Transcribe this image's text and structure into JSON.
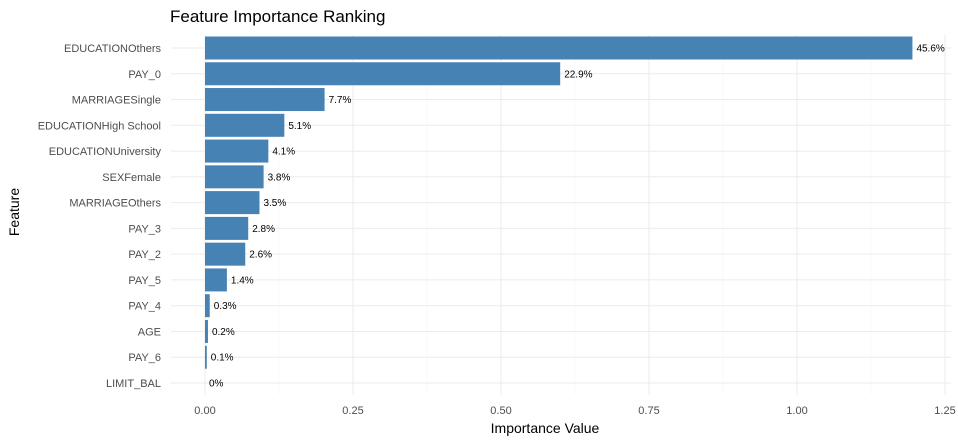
{
  "chart_data": {
    "type": "bar",
    "orientation": "horizontal",
    "title": "Feature Importance Ranking",
    "xlabel": "Importance Value",
    "ylabel": "Feature",
    "xlim": [
      0,
      1.25
    ],
    "xticks": [
      0.0,
      0.25,
      0.5,
      0.75,
      1.0,
      1.25
    ],
    "xtick_labels": [
      "0.00",
      "0.25",
      "0.50",
      "0.75",
      "1.00",
      "1.25"
    ],
    "grid": true,
    "bar_color": "#4682B4",
    "categories": [
      "EDUCATIONOthers",
      "PAY_0",
      "MARRIAGESingle",
      "EDUCATIONHigh School",
      "EDUCATIONUniversity",
      "SEXFemale",
      "MARRIAGEOthers",
      "PAY_3",
      "PAY_2",
      "PAY_5",
      "PAY_4",
      "AGE",
      "PAY_6",
      "LIMIT_BAL"
    ],
    "values": [
      1.195,
      0.6,
      0.202,
      0.134,
      0.107,
      0.099,
      0.092,
      0.073,
      0.068,
      0.037,
      0.008,
      0.005,
      0.003,
      0.0
    ],
    "data_labels": [
      "45.6%",
      "22.9%",
      "7.7%",
      "5.1%",
      "4.1%",
      "3.8%",
      "3.5%",
      "2.8%",
      "2.6%",
      "1.4%",
      "0.3%",
      "0.2%",
      "0.1%",
      "0%"
    ]
  }
}
